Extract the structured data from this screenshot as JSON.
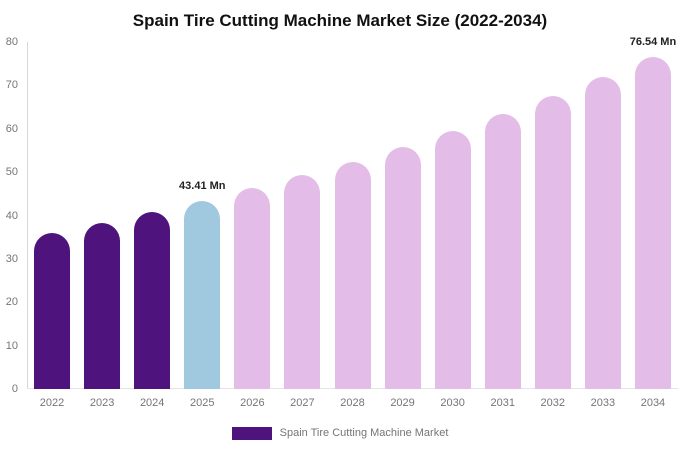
{
  "title": "Spain Tire Cutting Machine Market Size (2022-2034)",
  "legend": {
    "label": "Spain Tire Cutting Machine Market",
    "swatch_color": "#4E137C"
  },
  "palette": {
    "historical": "#4E137C",
    "base_year": "#A0C9DF",
    "forecast": "#E3BCE7",
    "axis_line": "#d6d6d6",
    "tick_text": "#757575",
    "value_label_text": "#222222",
    "background": "#ffffff"
  },
  "chart_data": {
    "type": "bar",
    "title": "Spain Tire Cutting Machine Market Size (2022-2034)",
    "unit": "Mn",
    "categories": [
      "2022",
      "2023",
      "2024",
      "2025",
      "2026",
      "2027",
      "2028",
      "2029",
      "2030",
      "2031",
      "2032",
      "2033",
      "2034"
    ],
    "values": [
      35.94,
      38.28,
      40.77,
      43.41,
      46.23,
      49.24,
      52.44,
      55.85,
      59.48,
      63.34,
      67.46,
      71.84,
      76.54
    ],
    "bar_roles": [
      "historical",
      "historical",
      "historical",
      "base_year",
      "forecast",
      "forecast",
      "forecast",
      "forecast",
      "forecast",
      "forecast",
      "forecast",
      "forecast",
      "forecast"
    ],
    "annotations": [
      {
        "category": "2025",
        "text": "43.41 Mn"
      },
      {
        "category": "2034",
        "text": "76.54 Mn"
      }
    ],
    "xlabel": "",
    "ylabel": "",
    "ylim": [
      0,
      80
    ],
    "yticks": [
      0,
      10,
      20,
      30,
      40,
      50,
      60,
      70,
      80
    ],
    "grid": false,
    "legend_position": "bottom"
  }
}
